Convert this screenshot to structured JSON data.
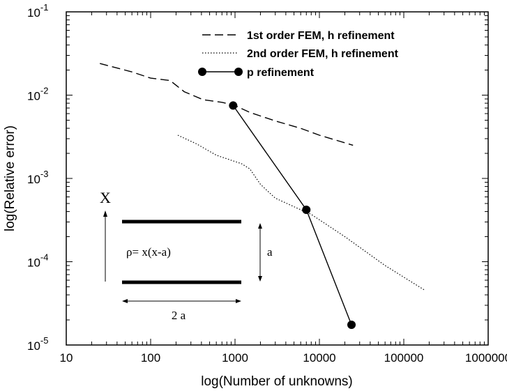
{
  "chart_data": {
    "type": "line",
    "xlabel": "log(Number of unknowns)",
    "ylabel": "log(Relative error)",
    "xscale": "log",
    "yscale": "log",
    "xlim": [
      10,
      1000000
    ],
    "ylim": [
      1e-05,
      0.1
    ],
    "x_ticks": [
      "10",
      "100",
      "1000",
      "10000",
      "100000",
      "1000000"
    ],
    "y_ticks": [
      {
        "base": "10",
        "exp": "-5"
      },
      {
        "base": "10",
        "exp": "-4"
      },
      {
        "base": "10",
        "exp": "-3"
      },
      {
        "base": "10",
        "exp": "-2"
      },
      {
        "base": "10",
        "exp": "-1"
      }
    ],
    "grid": false,
    "legend_position": "top-right",
    "series": [
      {
        "name": "1st order FEM, h refinement",
        "style": "dashed",
        "x": [
          25,
          60,
          100,
          170,
          250,
          420,
          700,
          1000,
          1500,
          3000,
          6000,
          10000,
          25000
        ],
        "y": [
          0.024,
          0.019,
          0.016,
          0.015,
          0.011,
          0.0088,
          0.0082,
          0.0075,
          0.0062,
          0.0049,
          0.004,
          0.0033,
          0.0025
        ]
      },
      {
        "name": "2nd order FEM, h refinement",
        "style": "dotted",
        "x": [
          210,
          350,
          600,
          1200,
          1500,
          2000,
          3000,
          6000,
          8000,
          20000,
          60000,
          180000
        ],
        "y": [
          0.0033,
          0.0026,
          0.0019,
          0.0015,
          0.0013,
          0.00085,
          0.00058,
          0.00042,
          0.00037,
          0.0002,
          9e-05,
          4.5e-05
        ]
      },
      {
        "name": "p refinement",
        "style": "solid-markers",
        "x": [
          950,
          7000,
          24000
        ],
        "y": [
          0.0075,
          0.00042,
          1.75e-05
        ]
      }
    ],
    "inset": {
      "x_label": "X",
      "formula": "ρ= x(x-a)",
      "height_label": "a",
      "width_label": "2 a"
    }
  }
}
